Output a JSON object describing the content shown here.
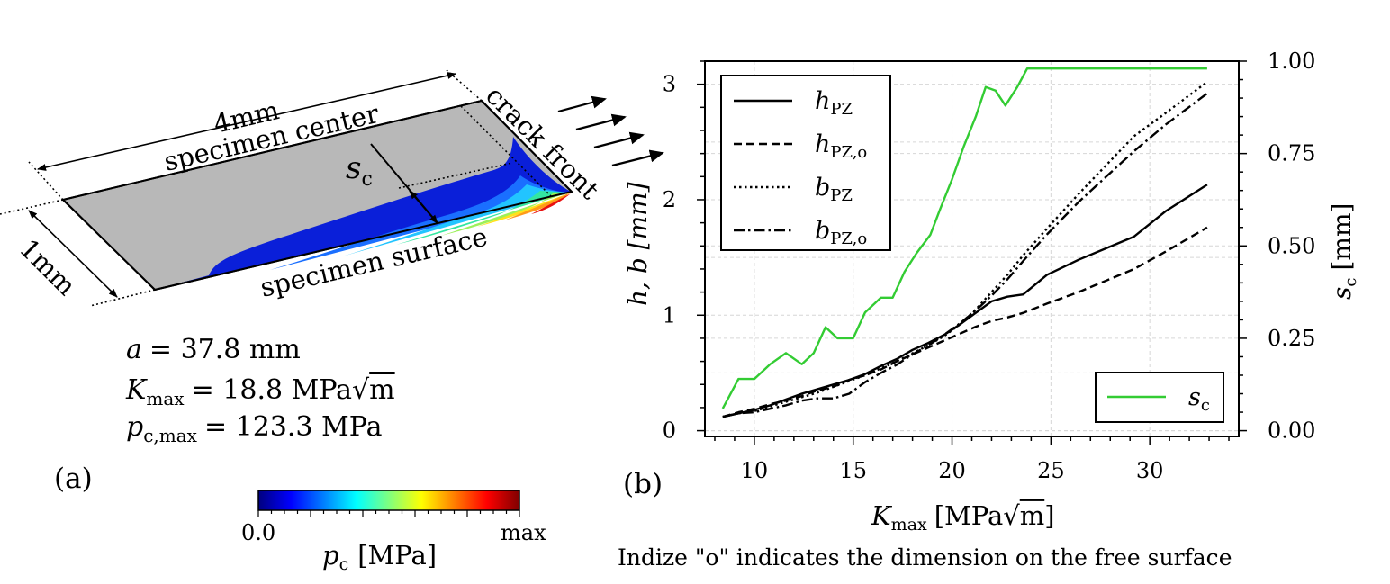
{
  "panel_a": {
    "label": "(a)",
    "dim_length": "4mm",
    "dim_width": "1mm",
    "label_center": "specimen center",
    "label_surface": "specimen surface",
    "label_crack_front": "crack front",
    "label_sc": "s",
    "label_sc_sub": "c",
    "param_a_sym": "a",
    "param_a_val": "= 37.8 mm",
    "param_k_sym": "K",
    "param_k_sub": "max",
    "param_k_val": "= 18.8 MPa",
    "param_k_unit_root": "m",
    "param_p_sym": "p",
    "param_p_sub": "c,max",
    "param_p_val": "= 123.3 MPa",
    "colorbar": {
      "min_label": "0.0",
      "max_label": "max",
      "title_sym": "p",
      "title_sub": "c",
      "title_unit": "[MPa]",
      "colors": [
        "#00007f",
        "#0000ff",
        "#007fff",
        "#00ffff",
        "#7fff7f",
        "#ffff00",
        "#ff7f00",
        "#ff0000",
        "#7f0000"
      ]
    },
    "colors": {
      "specimen": "#b8b8b8",
      "blue": "#0a1fd9"
    }
  },
  "panel_b": {
    "label": "(b)",
    "caption": "Indize \"o\" indicates the dimension on the free surface"
  },
  "chart_data": {
    "type": "line",
    "xlabel_sym": "K",
    "xlabel_sub": "max",
    "xlabel_unit": "[MPa",
    "xlabel_root": "m",
    "xlabel_close": "]",
    "ylabel_left": "h, b [mm]",
    "ylabel_right_sym": "s",
    "ylabel_right_sub": "c",
    "ylabel_right_unit": "[mm]",
    "xlim": [
      7.5,
      34.5
    ],
    "ylim_left": [
      -0.05,
      3.2
    ],
    "ylim_right": [
      -0.01563,
      1.0
    ],
    "xticks": [
      10,
      15,
      20,
      25,
      30
    ],
    "yticks_left": [
      0,
      1,
      2,
      3
    ],
    "yticks_right": [
      "0.00",
      "0.25",
      "0.50",
      "0.75",
      "1.00"
    ],
    "grid": true,
    "legend_left_position": "upper-left",
    "legend_right_position": "lower-right",
    "series": [
      {
        "name_sym": "h",
        "name_sub": "PZ",
        "axis": "left",
        "style": "solid",
        "color": "#000000",
        "x": [
          8.4,
          9.2,
          10.0,
          10.8,
          11.6,
          12.4,
          13.2,
          14.0,
          14.8,
          15.6,
          16.4,
          17.2,
          18.0,
          18.8,
          19.6,
          20.4,
          21.2,
          22.0,
          22.8,
          23.6,
          24.8,
          26.4,
          27.8,
          29.2,
          30.8,
          32.9
        ],
        "y": [
          0.12,
          0.15,
          0.18,
          0.22,
          0.27,
          0.32,
          0.36,
          0.4,
          0.44,
          0.49,
          0.56,
          0.62,
          0.7,
          0.76,
          0.83,
          0.92,
          1.02,
          1.12,
          1.16,
          1.18,
          1.35,
          1.48,
          1.58,
          1.68,
          1.9,
          2.13
        ]
      },
      {
        "name_sym": "h",
        "name_sub": "PZ,o",
        "axis": "left",
        "style": "dashed",
        "color": "#000000",
        "x": [
          8.4,
          9.2,
          10.0,
          10.8,
          11.6,
          12.4,
          13.2,
          14.0,
          14.8,
          15.6,
          16.4,
          17.2,
          18.0,
          18.8,
          19.6,
          20.4,
          21.2,
          22.0,
          22.8,
          23.6,
          24.8,
          26.4,
          27.8,
          29.2,
          30.8,
          32.9
        ],
        "y": [
          0.12,
          0.16,
          0.19,
          0.23,
          0.26,
          0.3,
          0.35,
          0.38,
          0.44,
          0.48,
          0.53,
          0.6,
          0.66,
          0.72,
          0.78,
          0.84,
          0.9,
          0.95,
          0.98,
          1.02,
          1.1,
          1.2,
          1.3,
          1.4,
          1.55,
          1.76
        ]
      },
      {
        "name_sym": "b",
        "name_sub": "PZ",
        "axis": "left",
        "style": "dotted",
        "color": "#000000",
        "x": [
          8.4,
          9.2,
          10.0,
          10.8,
          11.6,
          12.4,
          13.2,
          14.0,
          14.8,
          15.6,
          16.4,
          17.2,
          18.0,
          18.8,
          19.6,
          20.4,
          21.2,
          22.0,
          22.8,
          23.6,
          24.8,
          26.4,
          27.8,
          29.2,
          30.8,
          32.9
        ],
        "y": [
          0.12,
          0.15,
          0.17,
          0.21,
          0.25,
          0.29,
          0.33,
          0.38,
          0.43,
          0.48,
          0.54,
          0.6,
          0.67,
          0.74,
          0.82,
          0.92,
          1.05,
          1.2,
          1.35,
          1.52,
          1.75,
          2.05,
          2.3,
          2.55,
          2.75,
          3.02
        ]
      },
      {
        "name_sym": "b",
        "name_sub": "PZ,o",
        "axis": "left",
        "style": "dashdot",
        "color": "#000000",
        "x": [
          8.4,
          9.2,
          10.0,
          10.8,
          11.6,
          12.4,
          13.2,
          14.0,
          14.8,
          15.6,
          16.4,
          17.2,
          18.0,
          18.8,
          19.6,
          20.4,
          21.2,
          22.0,
          22.8,
          23.6,
          24.8,
          26.4,
          27.8,
          29.2,
          30.8,
          32.9
        ],
        "y": [
          0.12,
          0.15,
          0.16,
          0.19,
          0.22,
          0.26,
          0.28,
          0.28,
          0.32,
          0.42,
          0.5,
          0.57,
          0.66,
          0.74,
          0.83,
          0.93,
          1.04,
          1.17,
          1.31,
          1.47,
          1.7,
          1.98,
          2.2,
          2.42,
          2.65,
          2.92
        ]
      },
      {
        "name_sym": "s",
        "name_sub": "c",
        "axis": "right",
        "style": "solid",
        "color": "#33cc33",
        "x": [
          8.4,
          9.2,
          10.0,
          10.8,
          11.6,
          12.4,
          13.0,
          13.6,
          14.2,
          15.0,
          15.6,
          16.4,
          17.0,
          17.6,
          18.2,
          18.9,
          19.4,
          20.0,
          20.6,
          21.2,
          21.7,
          22.2,
          22.7,
          23.3,
          23.8,
          25.0,
          27.0,
          30.0,
          32.9
        ],
        "y": [
          0.06,
          0.14,
          0.14,
          0.18,
          0.21,
          0.18,
          0.21,
          0.28,
          0.25,
          0.25,
          0.32,
          0.36,
          0.36,
          0.43,
          0.48,
          0.53,
          0.6,
          0.68,
          0.77,
          0.85,
          0.93,
          0.92,
          0.88,
          0.93,
          0.98,
          0.98,
          0.98,
          0.98,
          0.98
        ]
      }
    ]
  }
}
